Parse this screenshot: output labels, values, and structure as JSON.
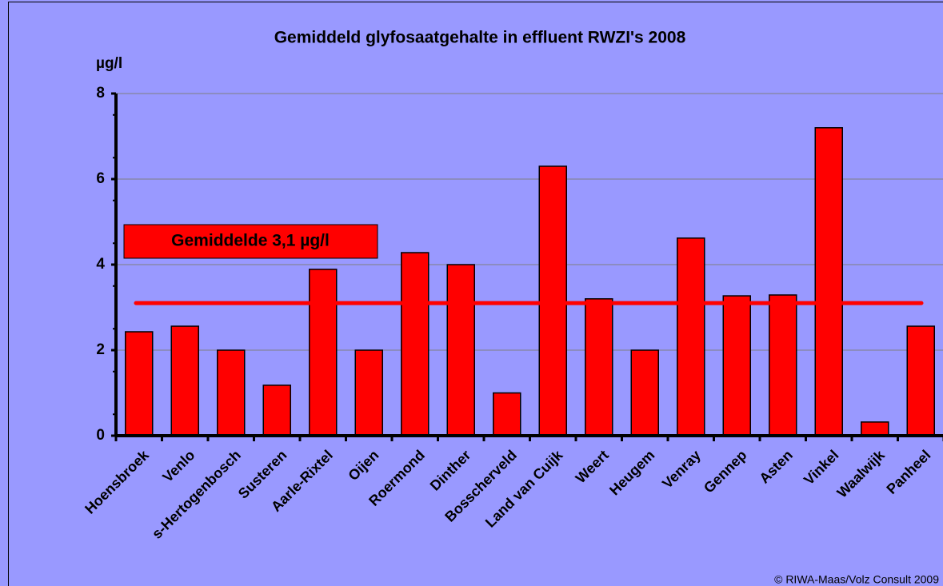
{
  "chart_data": {
    "type": "bar",
    "title": "Gemiddeld glyfosaatgehalte in effluent RWZI's 2008",
    "y_label": "µg/l",
    "categories": [
      "Hoensbroek",
      "Venlo",
      "s-Hertogenbosch",
      "Susteren",
      "Aarle-Rixtel",
      "Oijen",
      "Roermond",
      "Dinther",
      "Bosscherveld",
      "Land van Cuijk",
      "Weert",
      "Heugem",
      "Venray",
      "Gennep",
      "Asten",
      "Vinkel",
      "Waalwijk",
      "Panheel"
    ],
    "values": [
      2.43,
      2.56,
      2.0,
      1.18,
      3.89,
      2.0,
      4.28,
      4.0,
      1.0,
      6.3,
      3.2,
      2.0,
      4.62,
      3.27,
      3.29,
      7.2,
      0.32,
      2.56
    ],
    "color": "#ff0000",
    "mean_line": 3.1,
    "annotation": "Gemiddelde 3,1 µg/l",
    "ylim": [
      0,
      8
    ],
    "yticks": [
      0,
      2,
      4,
      6,
      8
    ],
    "grid": true,
    "credit": "© RIWA-Maas/Volz Consult 2009"
  }
}
